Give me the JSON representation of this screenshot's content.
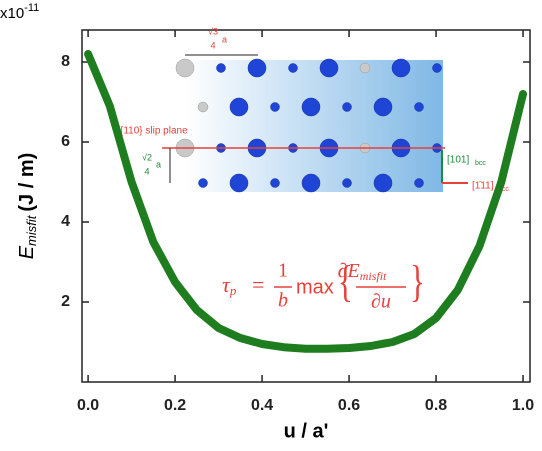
{
  "chart_data": {
    "type": "line",
    "x": [
      0,
      0.05,
      0.1,
      0.15,
      0.2,
      0.25,
      0.3,
      0.35,
      0.4,
      0.45,
      0.5,
      0.55,
      0.6,
      0.65,
      0.7,
      0.75,
      0.8,
      0.85,
      0.9,
      0.95,
      1.0
    ],
    "values": [
      8.2,
      6.9,
      5.0,
      3.5,
      2.5,
      1.8,
      1.35,
      1.1,
      0.95,
      0.87,
      0.83,
      0.83,
      0.85,
      0.9,
      1.0,
      1.2,
      1.6,
      2.3,
      3.4,
      5.0,
      7.2
    ],
    "color": "#1e7d1e",
    "xlim": [
      -0.014,
      1.016
    ],
    "ylim": [
      0,
      8.8
    ],
    "xticks": [
      {
        "value": 0,
        "label": "0.0"
      },
      0.2,
      0.4,
      0.6,
      0.8,
      {
        "value": 1,
        "label": "1.0"
      }
    ],
    "yticks": [
      2,
      4,
      6,
      8
    ],
    "x_label": "u / a'",
    "y_label": {
      "symbol": "E",
      "subscript": "misfit",
      "unit": "(J / m)"
    },
    "y_multiplier": {
      "base": "x10",
      "exponent": "-11"
    },
    "equation": {
      "lhs": "τ",
      "lhs_sub": "p",
      "eq": "=",
      "frac_num": "1",
      "frac_den": "b",
      "op": "max",
      "brace_open": "{",
      "brace_close": "}",
      "d_num": "∂E",
      "d_num_sub": "misfit",
      "d_den": "∂u"
    },
    "inset": {
      "spacing_top": {
        "root": "√3",
        "den": "4",
        "unit": "a"
      },
      "spacing_side": {
        "root": "√2",
        "den": "4",
        "unit": "a"
      },
      "slip_plane": "{110} slip plane",
      "dir_up": "[101]",
      "dir_up_sub": "bcc",
      "dir_right": "[1̄11]",
      "dir_right_sub": "bcc"
    }
  }
}
